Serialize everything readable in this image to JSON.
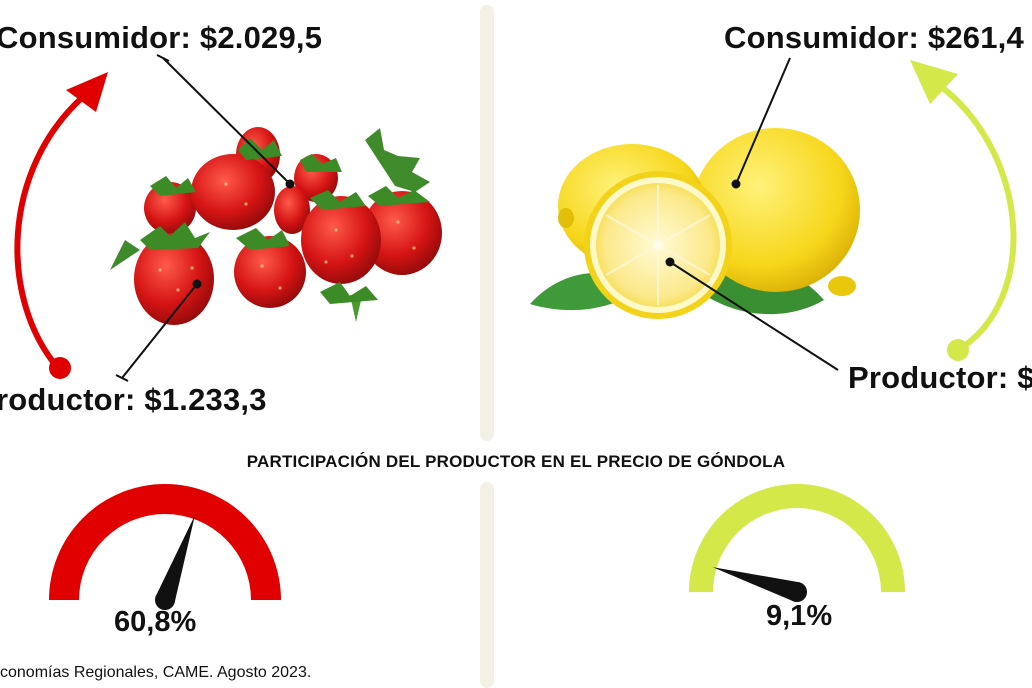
{
  "strawberry": {
    "consumer_label": "Consumidor: $2.029,5",
    "producer_label": "roductor: $1.233,3",
    "producer_share_label": "60,8%",
    "producer_share": 0.608,
    "color": "#e00000"
  },
  "lemon": {
    "consumer_label": "Consumidor: $261,4",
    "producer_label": "Productor: $",
    "producer_share_label": "9,1%",
    "producer_share": 0.091,
    "color": "#d4e84a"
  },
  "section_title": "PARTICIPACIÓN DEL PRODUCTOR EN EL PRECIO DE GÓNDOLA",
  "source": "conomías Regionales, CAME. Agosto 2023.",
  "colors": {
    "divider": "#f3f0e6",
    "strawberry_red": "#d81a1a",
    "lemon_yellow": "#f7dc22",
    "leaf_green": "#3f8a2a"
  },
  "icons": {
    "strawberry": "strawberry-illustration",
    "lemon": "lemon-illustration"
  }
}
